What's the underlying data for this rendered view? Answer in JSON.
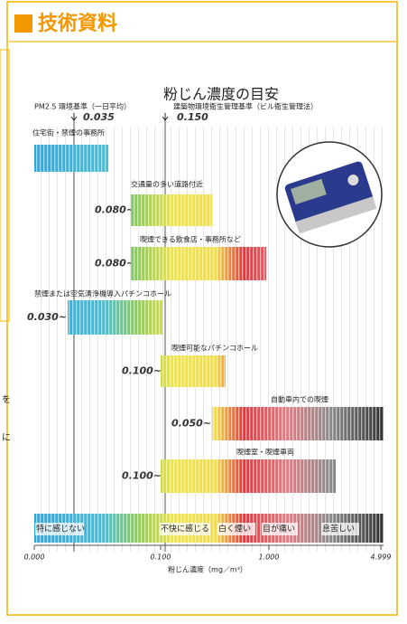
{
  "header": {
    "title": "技術資料"
  },
  "chart_title": "粉じん濃度の目安",
  "standards": [
    {
      "label": "PM2.5 環境基準（一日平均）",
      "value": "0.035"
    },
    {
      "label": "建築物環境衛生管理基準（ビル衛生管理法）",
      "value": "0.150"
    }
  ],
  "items": [
    {
      "label": "住宅街・禁煙の事務所",
      "value": null
    },
    {
      "label": "交通量の多い道路付近",
      "value": "0.080~"
    },
    {
      "label": "喫煙できる飲食店・事務所など",
      "value": "0.080~"
    },
    {
      "label": "禁煙または空気清浄機導入パチンコホール",
      "value": "0.030~"
    },
    {
      "label": "喫煙可能なパチンコホール",
      "value": "0.100~"
    },
    {
      "label": "自動車内での喫煙",
      "value": "0.050~"
    },
    {
      "label": "喫煙室・喫煙車両",
      "value": "0.100~"
    }
  ],
  "scale_labels": [
    "特に感じない",
    "不快に感じる",
    "白く煙い",
    "目が痛い",
    "息苦しい"
  ],
  "axis": {
    "ticks": [
      "0.000",
      "0.100",
      "1.000",
      "4.999"
    ],
    "label": "粉じん濃度（mg／m³）"
  },
  "side_text": [
    "を",
    "に"
  ]
}
